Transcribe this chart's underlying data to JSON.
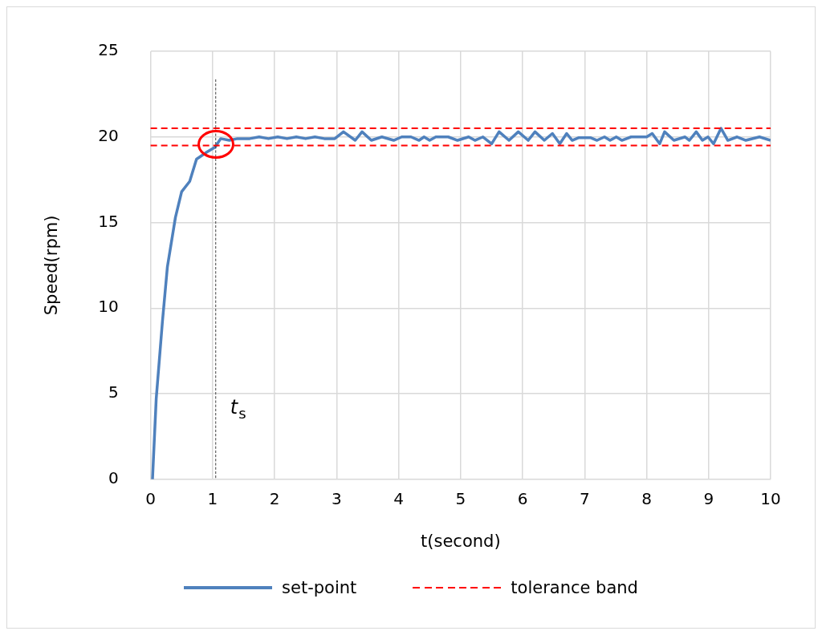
{
  "chart_data": {
    "type": "line",
    "xlabel": "t(second)",
    "ylabel": "Speed(rpm)",
    "xlim": [
      0,
      10
    ],
    "xticks": [
      0,
      1,
      2,
      3,
      4,
      5,
      6,
      7,
      8,
      9,
      10
    ],
    "ylim": [
      0,
      25
    ],
    "yticks": [
      0,
      5,
      10,
      15,
      20,
      25
    ],
    "grid": true,
    "legend": "bottom",
    "marker": "none",
    "series": [
      {
        "name": "set-point",
        "color": "#4f81bd",
        "line_style": "solid",
        "x": [
          0.03,
          0.09,
          0.19,
          0.27,
          0.4,
          0.5,
          0.63,
          0.74,
          0.9,
          1.04,
          1.13,
          1.27,
          1.4,
          1.6,
          1.75,
          1.9,
          2.05,
          2.2,
          2.35,
          2.5,
          2.65,
          2.8,
          2.97,
          3.11,
          3.3,
          3.41,
          3.56,
          3.73,
          3.92,
          4.05,
          4.2,
          4.33,
          4.41,
          4.5,
          4.6,
          4.8,
          4.95,
          5.13,
          5.23,
          5.36,
          5.5,
          5.62,
          5.78,
          5.93,
          6.09,
          6.2,
          6.35,
          6.48,
          6.6,
          6.71,
          6.8,
          6.9,
          7.1,
          7.2,
          7.32,
          7.41,
          7.51,
          7.6,
          7.75,
          8.0,
          8.09,
          8.21,
          8.29,
          8.44,
          8.62,
          8.69,
          8.8,
          8.9,
          8.99,
          9.08,
          9.2,
          9.31,
          9.46,
          9.6,
          9.82,
          10.0
        ],
        "values": [
          0,
          4.7,
          9.2,
          12.4,
          15.3,
          16.8,
          17.4,
          18.7,
          19.1,
          19.4,
          19.9,
          19.8,
          19.9,
          19.9,
          20.0,
          19.9,
          20.0,
          19.9,
          20.0,
          19.9,
          20.0,
          19.9,
          19.9,
          20.3,
          19.8,
          20.3,
          19.8,
          20.0,
          19.8,
          20.0,
          20.0,
          19.8,
          20.0,
          19.8,
          20.0,
          20.0,
          19.8,
          20.0,
          19.8,
          20.0,
          19.6,
          20.3,
          19.8,
          20.3,
          19.8,
          20.3,
          19.8,
          20.2,
          19.6,
          20.2,
          19.8,
          19.95,
          19.95,
          19.8,
          20.0,
          19.8,
          20.0,
          19.8,
          20.0,
          20.0,
          20.2,
          19.6,
          20.3,
          19.8,
          20.0,
          19.8,
          20.3,
          19.8,
          20.0,
          19.6,
          20.5,
          19.8,
          20.0,
          19.8,
          20.0,
          19.8
        ]
      }
    ],
    "ref_lines": [
      {
        "axis": "y",
        "value": 20.5,
        "label": "tolerance band",
        "color": "#ff0000",
        "line_style": "dashed"
      },
      {
        "axis": "y",
        "value": 19.5,
        "label": null,
        "color": "#ff0000",
        "line_style": "dashed"
      },
      {
        "axis": "x",
        "value": 1.05,
        "label": "t$_{s}$",
        "color": "#404040",
        "line_style": "dashed"
      }
    ]
  }
}
